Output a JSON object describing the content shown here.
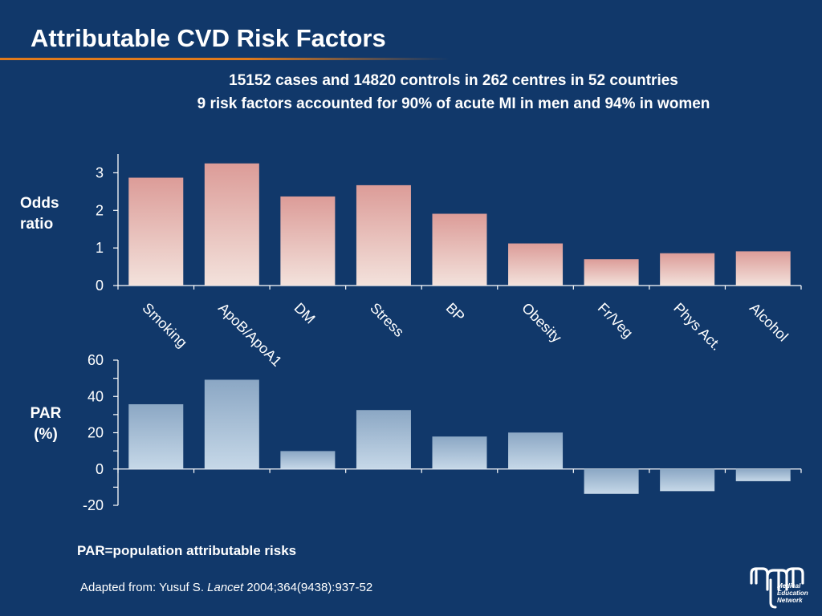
{
  "slide": {
    "title": "Attributable CVD Risk Factors",
    "subtitle_line1": "15152 cases and 14820 controls in 262 centres in 52 countries",
    "subtitle_line2": "9 risk factors accounted for 90% of acute MI in men and 94% in women",
    "par_note": "PAR=population attributable risks",
    "source_prefix": "Adapted from: Yusuf S. ",
    "source_journal": "Lancet",
    "source_suffix": " 2004;364(9438):937-52",
    "logo_line1": "Medical",
    "logo_line2": "Education",
    "logo_line3": "Network"
  },
  "colors": {
    "background": "#11386a",
    "title_rule": "#e07a1c",
    "odds_bar_top": "#dc9c98",
    "odds_bar_bottom": "#f3e2dc",
    "par_bar_top": "#8ba7c4",
    "par_bar_bottom": "#c6d8e8"
  },
  "chart_data": [
    {
      "type": "bar",
      "ylabel_line1": "Odds",
      "ylabel_line2": "ratio",
      "categories": [
        "Smoking",
        "ApoB/ApoA1",
        "DM",
        "Stress",
        "BP",
        "Obesity",
        "Fr/Veg",
        "Phys Act.",
        "Alcohol"
      ],
      "values": [
        2.87,
        3.25,
        2.37,
        2.67,
        1.91,
        1.12,
        0.7,
        0.86,
        0.91
      ],
      "ylim": [
        0,
        3.5
      ],
      "yticks": [
        0,
        1,
        2,
        3
      ],
      "ytick_labels": [
        "0",
        "1",
        "2",
        "3"
      ]
    },
    {
      "type": "bar",
      "ylabel_line1": "PAR",
      "ylabel_line2": "(%)",
      "categories": [
        "Smoking",
        "ApoB/ApoA1",
        "DM",
        "Stress",
        "BP",
        "Obesity",
        "Fr/Veg",
        "Phys Act.",
        "Alcohol"
      ],
      "values": [
        35.7,
        49.2,
        9.9,
        32.5,
        17.9,
        20.1,
        -13.7,
        -12.2,
        -6.7
      ],
      "ylim": [
        -20,
        60
      ],
      "yticks": [
        -20,
        0,
        20,
        40,
        60
      ],
      "ytick_labels": [
        "-20",
        "0",
        "20",
        "40",
        "60"
      ]
    }
  ]
}
